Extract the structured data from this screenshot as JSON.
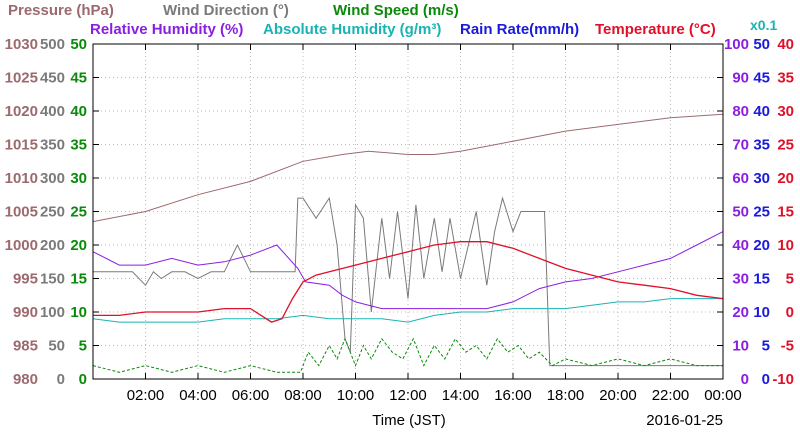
{
  "chart_data": {
    "type": "line",
    "date": "2016-01-25",
    "xlabel": "Time (JST)",
    "x_ticks": [
      "02:00",
      "04:00",
      "06:00",
      "08:00",
      "10:00",
      "12:00",
      "14:00",
      "16:00",
      "18:00",
      "20:00",
      "22:00",
      "00:00"
    ],
    "legend": [
      {
        "name": "Pressure (hPa)",
        "color": "#9c6a6e"
      },
      {
        "name": "Wind Direction (°)",
        "color": "#7a7a7a"
      },
      {
        "name": "Wind Speed (m/s)",
        "color": "#0a8a0a"
      },
      {
        "name": "Relative Humidity (%)",
        "color": "#8a1fe0"
      },
      {
        "name": "Absolute Humidity (g/m³)",
        "color": "#1ab3b3"
      },
      {
        "name": "Rain Rate(mm/h)",
        "color": "#1a1adc"
      },
      {
        "name": "Temperature (°C)",
        "color": "#e0102a"
      }
    ],
    "ah_multiplier": "x0.1",
    "axes": {
      "pressure": {
        "color": "#9c6a6e",
        "ylim": [
          980,
          1030
        ],
        "ticks": [
          "1030",
          "1025",
          "1020",
          "1015",
          "1010",
          "1005",
          "1000",
          "995",
          "990",
          "985",
          "980"
        ]
      },
      "wind_direction": {
        "color": "#7a7a7a",
        "ylim": [
          0,
          500
        ],
        "ticks": [
          "500",
          "450",
          "400",
          "350",
          "300",
          "250",
          "200",
          "150",
          "100",
          "50",
          "0"
        ]
      },
      "wind_speed": {
        "color": "#0a8a0a",
        "ylim": [
          0,
          50
        ],
        "ticks": [
          "50",
          "45",
          "40",
          "35",
          "30",
          "25",
          "20",
          "15",
          "10",
          "5",
          "0"
        ]
      },
      "relative_humidity": {
        "color": "#8a1fe0",
        "ylim": [
          0,
          100
        ],
        "ticks": [
          "100",
          "90",
          "80",
          "70",
          "60",
          "50",
          "40",
          "30",
          "20",
          "10",
          "0"
        ]
      },
      "rain_rate": {
        "color": "#1a1adc",
        "ylim": [
          0,
          50
        ],
        "ticks": [
          "50",
          "45",
          "40",
          "35",
          "30",
          "25",
          "20",
          "15",
          "10",
          "5",
          "0"
        ]
      },
      "temperature": {
        "color": "#e0102a",
        "ylim": [
          -10,
          40
        ],
        "ticks": [
          "40",
          "35",
          "30",
          "25",
          "20",
          "15",
          "10",
          "5",
          "0",
          "-5",
          "-10"
        ]
      }
    },
    "series": [
      {
        "name": "Pressure (hPa)",
        "axis": "pressure",
        "color": "#9c6a6e",
        "x": [
          0,
          2,
          4,
          6,
          8,
          9.5,
          10.5,
          12,
          13,
          14,
          16,
          18,
          20,
          22,
          24
        ],
        "y": [
          1003.5,
          1005,
          1007.5,
          1009.5,
          1012.5,
          1013.5,
          1014,
          1013.5,
          1013.5,
          1014,
          1015.5,
          1017,
          1018,
          1019,
          1019.5
        ]
      },
      {
        "name": "Wind Direction (°)",
        "axis": "wind_direction",
        "color": "#7a7a7a",
        "x": [
          0,
          1,
          1.5,
          2,
          2.3,
          2.6,
          3,
          3.5,
          4,
          4.5,
          5,
          5.5,
          6,
          6.5,
          7,
          7.5,
          7.7,
          7.8,
          8,
          8.5,
          9,
          9.3,
          9.6,
          9.8,
          10,
          10.3,
          10.6,
          11,
          11.3,
          11.6,
          12,
          12.3,
          12.6,
          13,
          13.3,
          13.6,
          14,
          14.3,
          14.6,
          15,
          15.3,
          15.6,
          16,
          16.3,
          16.5,
          17,
          17.2,
          17.4,
          24
        ],
        "y": [
          160,
          160,
          160,
          140,
          160,
          150,
          160,
          160,
          150,
          160,
          160,
          200,
          160,
          160,
          160,
          160,
          160,
          270,
          270,
          240,
          270,
          200,
          60,
          40,
          260,
          240,
          100,
          240,
          150,
          250,
          120,
          260,
          150,
          240,
          160,
          240,
          150,
          200,
          250,
          140,
          220,
          270,
          220,
          250,
          250,
          250,
          250,
          20,
          20
        ]
      },
      {
        "name": "Wind Speed (m/s)",
        "axis": "wind_speed",
        "color": "#0a8a0a",
        "x": [
          0,
          1,
          2,
          3,
          4,
          5,
          6,
          7,
          7.9,
          8.2,
          8.6,
          9,
          9.3,
          9.6,
          10,
          10.3,
          10.6,
          11,
          11.4,
          11.8,
          12.2,
          12.6,
          13,
          13.4,
          13.8,
          14.2,
          14.6,
          15,
          15.4,
          15.8,
          16.2,
          16.6,
          17,
          17.5,
          18,
          19,
          20,
          21,
          22,
          23,
          24
        ],
        "y": [
          2,
          1,
          2,
          1,
          2,
          1,
          2,
          1,
          1,
          4,
          2,
          5,
          3,
          6,
          2,
          5,
          3,
          6,
          4,
          3,
          6,
          2,
          5,
          3,
          6,
          4,
          5,
          3,
          6,
          4,
          5,
          3,
          4,
          2,
          3,
          2,
          3,
          2,
          3,
          2,
          2
        ]
      },
      {
        "name": "Relative Humidity (%)",
        "axis": "relative_humidity",
        "color": "#8a1fe0",
        "x": [
          0,
          1,
          2,
          3,
          4,
          5,
          6,
          7,
          7.8,
          8.1,
          9,
          9.5,
          10,
          11,
          12,
          13,
          14,
          15,
          16,
          17,
          18,
          19,
          20,
          21,
          22,
          23,
          24
        ],
        "y": [
          38,
          34,
          34,
          36,
          34,
          35,
          37,
          40,
          33,
          29,
          28,
          25,
          23,
          21,
          21,
          21,
          21,
          21,
          23,
          27,
          29,
          30,
          32,
          34,
          36,
          40,
          44
        ]
      },
      {
        "name": "Absolute Humidity (g/m³)",
        "axis": "relative_humidity",
        "color": "#1ab3b3",
        "x": [
          0,
          1,
          2,
          3,
          4,
          5,
          6,
          7,
          8,
          9,
          10,
          11,
          12,
          13,
          14,
          15,
          16,
          17,
          18,
          19,
          20,
          21,
          22,
          23,
          24
        ],
        "y": [
          18,
          17,
          17,
          17,
          17,
          18,
          18,
          18,
          19,
          18,
          18,
          18,
          17,
          19,
          20,
          20,
          21,
          21,
          21,
          22,
          23,
          23,
          24,
          24,
          24
        ]
      },
      {
        "name": "Rain Rate(mm/h)",
        "axis": "rain_rate",
        "color": "#1a1adc",
        "x": [
          0,
          24
        ],
        "y": [
          0,
          0
        ]
      },
      {
        "name": "Temperature (°C)",
        "axis": "temperature",
        "color": "#e0102a",
        "x": [
          0,
          1,
          2,
          3,
          4,
          5,
          6,
          6.8,
          7.2,
          7.6,
          8,
          8.5,
          9,
          10,
          11,
          12,
          13,
          14,
          15,
          16,
          17,
          18,
          19,
          20,
          21,
          22,
          23,
          24
        ],
        "y": [
          -0.5,
          -0.5,
          0,
          0,
          0,
          0.5,
          0.5,
          -1.5,
          -1,
          2,
          4.5,
          5.5,
          6,
          7,
          8,
          9,
          10,
          10.5,
          10.5,
          9.5,
          8,
          6.5,
          5.5,
          4.5,
          4,
          3.5,
          2.5,
          2
        ]
      }
    ],
    "grid": true
  }
}
